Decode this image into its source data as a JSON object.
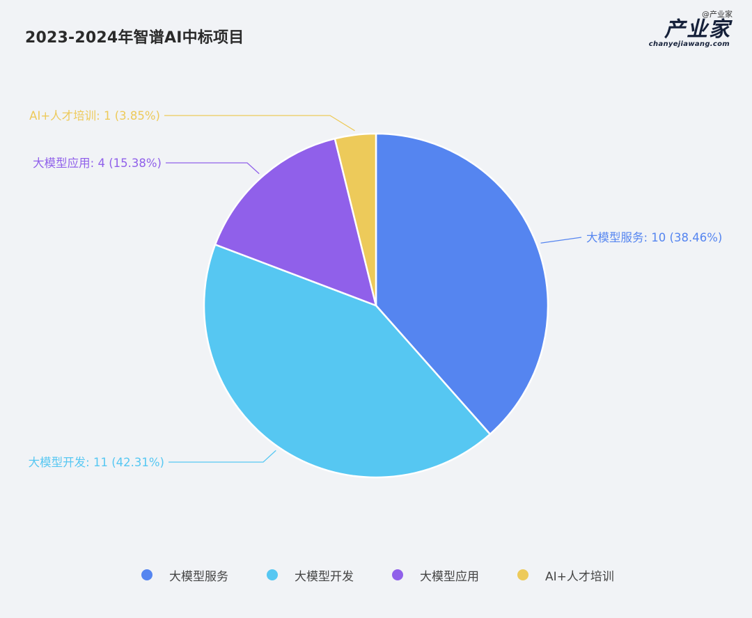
{
  "header": {
    "title": "2023-2024年智谱AI中标项目",
    "watermark": "@产业家",
    "logo_text": "产业家",
    "logo_sub": "chanyejiawang.com"
  },
  "chart_data": {
    "type": "pie",
    "title": "2023-2024年智谱AI中标项目",
    "start_angle_deg": 0,
    "direction": "clockwise",
    "legend_position": "bottom",
    "slices": [
      {
        "name": "大模型服务",
        "value": 10,
        "percent": "38.46%",
        "label": "大模型服务: 10 (38.46%)",
        "color": "#5585f0"
      },
      {
        "name": "大模型开发",
        "value": 11,
        "percent": "42.31%",
        "label": "大模型开发: 11 (42.31%)",
        "color": "#56c7f2"
      },
      {
        "name": "大模型应用",
        "value": 4,
        "percent": "15.38%",
        "label": "大模型应用: 4 (15.38%)",
        "color": "#9060ea"
      },
      {
        "name": "AI+人才培训",
        "value": 1,
        "percent": "3.85%",
        "label": "AI+人才培训: 1 (3.85%)",
        "color": "#edca5a"
      }
    ]
  }
}
